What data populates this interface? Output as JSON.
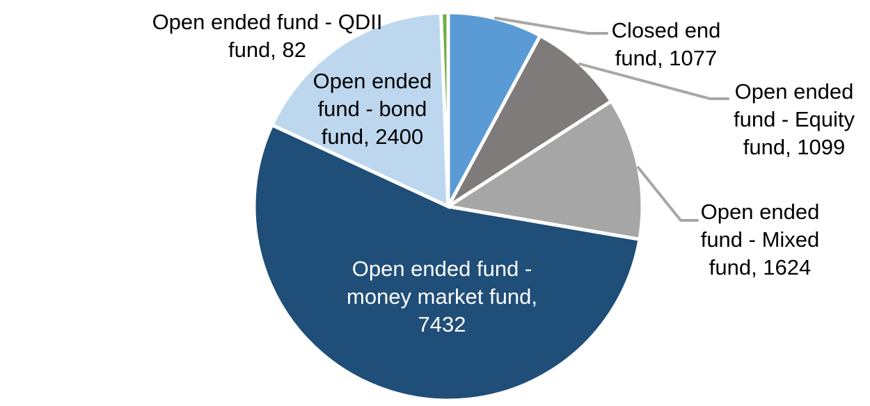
{
  "chart_data": {
    "type": "pie",
    "title": "",
    "legend_position": "none",
    "data_label_style": "category-and-value",
    "start_angle_deg": 0,
    "direction": "clockwise",
    "total": 13714,
    "series": [
      {
        "name": "Closed end fund",
        "value": 1077,
        "color": "#5B9BD5"
      },
      {
        "name": "Open ended fund - Equity fund",
        "value": 1099,
        "color": "#7F7B7B"
      },
      {
        "name": "Open ended fund - Mixed fund",
        "value": 1624,
        "color": "#A6A6A6"
      },
      {
        "name": "Open ended fund - money market fund",
        "value": 7432,
        "color": "#1F4E79"
      },
      {
        "name": "Open ended fund - bond fund",
        "value": 2400,
        "color": "#BDD7EE"
      },
      {
        "name": "Open ended fund - QDII fund",
        "value": 82,
        "color": "#70AD47"
      }
    ],
    "leader_line_color": "#A9A6A6",
    "slice_border_color": "#FFFFFF"
  },
  "labels": {
    "closed_end": {
      "lines": [
        "Closed end",
        "fund, 1077"
      ]
    },
    "equity": {
      "lines": [
        "Open ended",
        "fund - Equity",
        "fund, 1099"
      ]
    },
    "mixed": {
      "lines": [
        "Open ended",
        "fund - Mixed",
        "fund, 1624"
      ]
    },
    "money_market": {
      "lines": [
        "Open ended fund -",
        "money market fund,",
        "7432"
      ]
    },
    "bond": {
      "lines": [
        "Open ended",
        "fund - bond",
        "fund, 2400"
      ]
    },
    "qdii": {
      "lines": [
        "Open ended fund - QDII",
        "fund, 82"
      ]
    }
  }
}
